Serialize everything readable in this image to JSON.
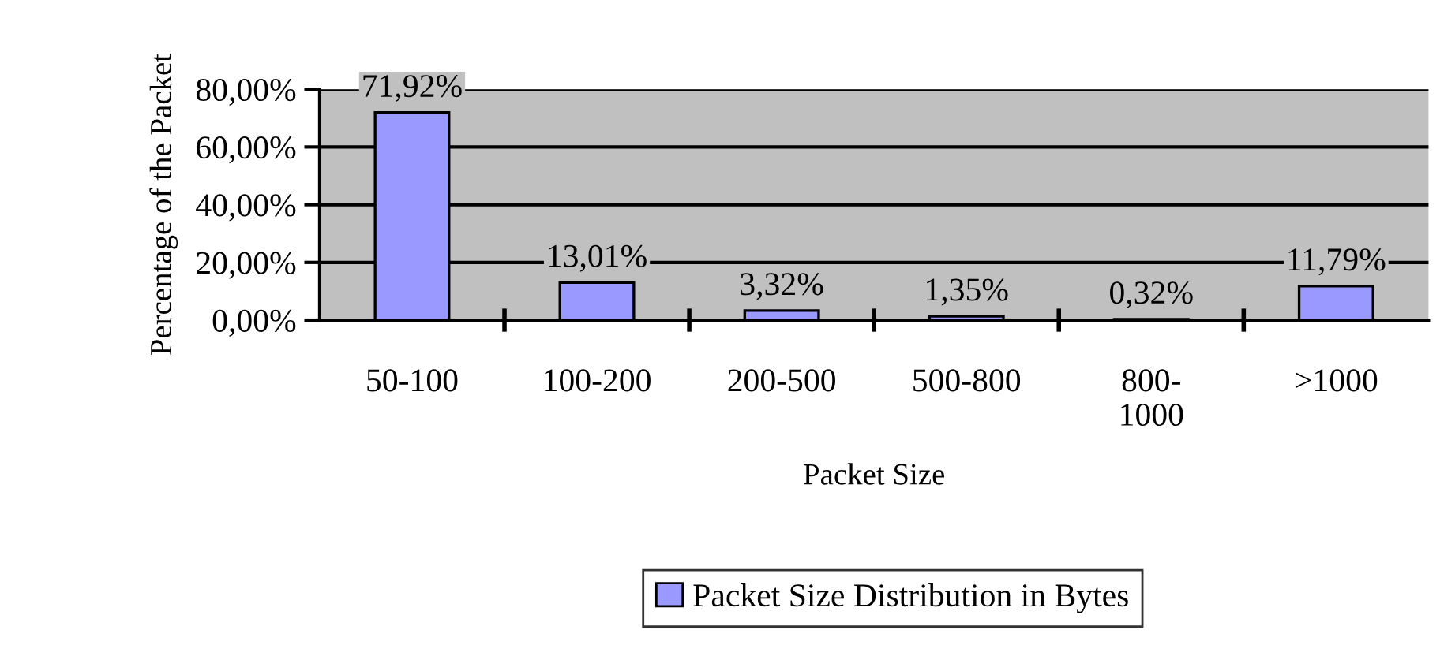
{
  "chart_data": {
    "type": "bar",
    "xlabel": "Packet Size",
    "ylabel": "Percentage of the Packet",
    "categories": [
      "50-100",
      "100-200",
      "200-500",
      "500-800",
      "800-1000",
      ">1000"
    ],
    "series": [
      {
        "name": "Packet Size Distribution in Bytes",
        "color": "#9999ff",
        "values": [
          71.92,
          13.01,
          3.32,
          1.35,
          0.32,
          11.79
        ],
        "value_labels": [
          "71,92%",
          "13,01%",
          "3,32%",
          "1,35%",
          "0,32%",
          "11,79%"
        ]
      }
    ],
    "ylim": [
      0,
      80
    ],
    "yticks": [
      {
        "value": 0,
        "label": "0,00%"
      },
      {
        "value": 20,
        "label": "20,00%"
      },
      {
        "value": 40,
        "label": "40,00%"
      },
      {
        "value": 60,
        "label": "60,00%"
      },
      {
        "value": 80,
        "label": "80,00%"
      }
    ],
    "grid": "y",
    "legend": "bottom"
  }
}
